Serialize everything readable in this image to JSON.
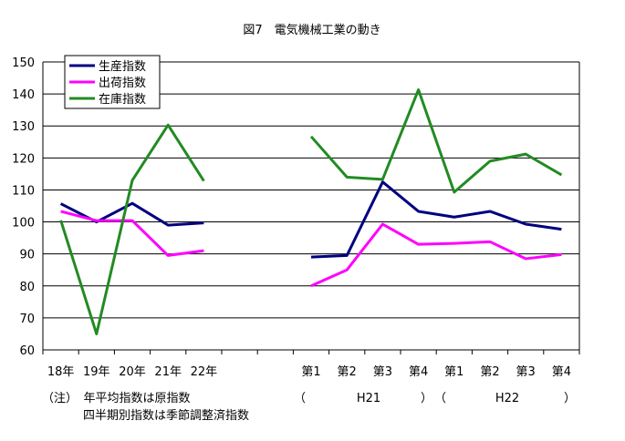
{
  "chart_data": {
    "type": "line",
    "title": "図7　電気機械工業の動き",
    "ylim": [
      60,
      150
    ],
    "yticks": [
      "60",
      "70",
      "80",
      "90",
      "100",
      "110",
      "120",
      "130",
      "140",
      "150"
    ],
    "grid": true,
    "legend_position": "top-left",
    "categories": [
      "18年",
      "19年",
      "20年",
      "21年",
      "22年",
      "",
      "",
      "第1",
      "第2",
      "第3",
      "第4",
      "第1",
      "第2",
      "第3",
      "第4"
    ],
    "series": [
      {
        "name": "生産指数",
        "color": "#000080",
        "values": [
          105.7,
          100.0,
          105.8,
          99.0,
          99.7,
          null,
          null,
          89.0,
          89.5,
          112.5,
          103.3,
          101.5,
          103.3,
          99.3,
          97.7
        ]
      },
      {
        "name": "出荷指数",
        "color": "#ff00ff",
        "values": [
          103.3,
          100.4,
          100.4,
          89.5,
          91.0,
          null,
          null,
          80.0,
          85.0,
          99.3,
          93.0,
          93.3,
          93.8,
          88.5,
          89.8
        ]
      },
      {
        "name": "在庫指数",
        "color": "#228b22",
        "values": [
          100.5,
          65.0,
          113.0,
          130.3,
          112.8,
          null,
          null,
          126.7,
          114.0,
          113.3,
          141.3,
          109.3,
          119.0,
          121.2,
          114.7
        ]
      }
    ]
  },
  "notes": {
    "line1": "（注）　年平均指数は原指数",
    "line2": "四半期別指数は季節調整済指数"
  },
  "groups": {
    "h21_open": "（",
    "h21_label": "H21",
    "h21_close": "）",
    "h22_open": "（",
    "h22_label": "H22",
    "h22_close": "）"
  }
}
